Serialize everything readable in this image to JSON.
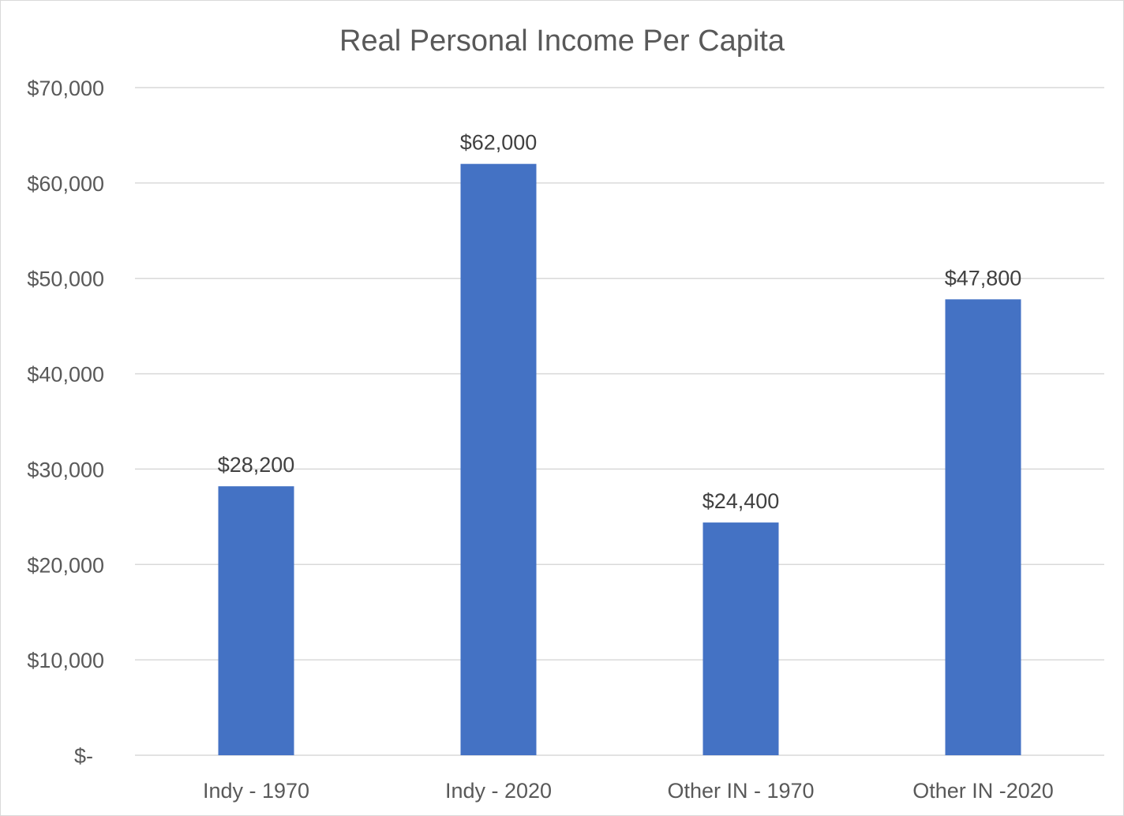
{
  "chart_data": {
    "type": "bar",
    "title": "Real Personal Income Per Capita",
    "xlabel": "",
    "ylabel": "",
    "categories": [
      "Indy - 1970",
      "Indy - 2020",
      "Other IN - 1970",
      "Other IN -2020"
    ],
    "values": [
      28200,
      62000,
      24400,
      47800
    ],
    "value_labels": [
      "$28,200",
      "$62,000",
      "$24,400",
      "$47,800"
    ],
    "ylim": [
      0,
      70000
    ],
    "yticks": [
      0,
      10000,
      20000,
      30000,
      40000,
      50000,
      60000,
      70000
    ],
    "ytick_labels": [
      "$-",
      "$10,000",
      "$20,000",
      "$30,000",
      "$40,000",
      "$50,000",
      "$60,000",
      "$70,000"
    ],
    "grid": true,
    "legend": "none",
    "bar_color": "#4472C4"
  }
}
